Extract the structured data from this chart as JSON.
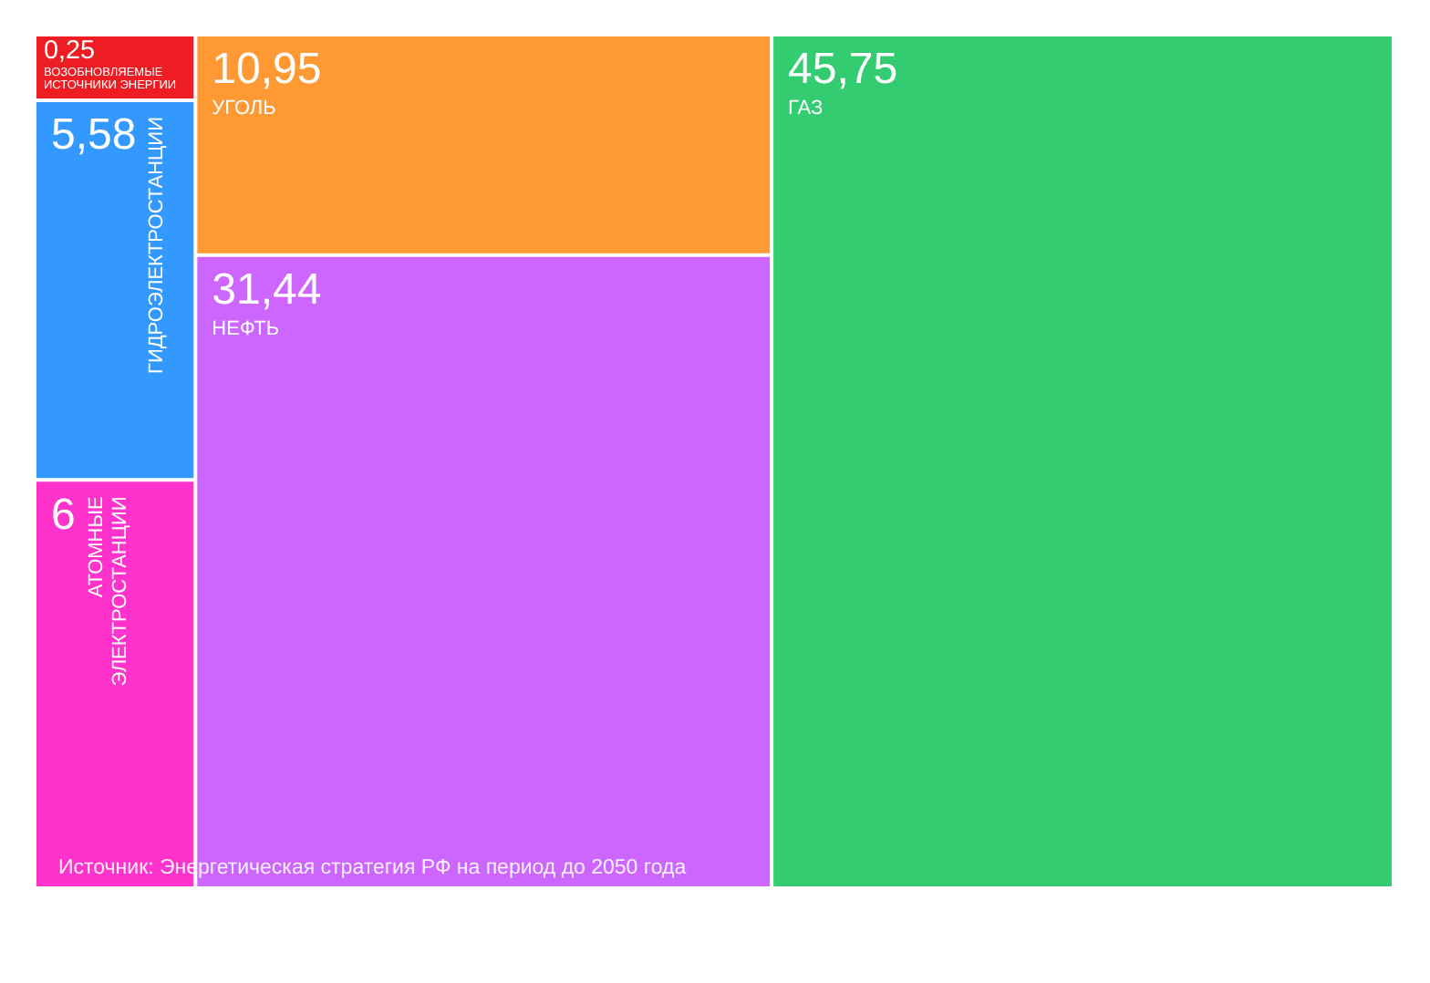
{
  "chart_data": {
    "type": "other",
    "categories": [
      "ВОЗОБНОВЛЯЕМЫЕ ИСТОЧНИКИ ЭНЕРГИИ",
      "ГИДРОЭЛЕКТРОСТАНЦИИ",
      "АТОМНЫЕ ЭЛЕКТРОСТАНЦИИ",
      "УГОЛЬ",
      "НЕФТЬ",
      "ГАЗ"
    ],
    "values": [
      0.25,
      5.58,
      6,
      10.95,
      31.44,
      45.75
    ],
    "value_labels": [
      "0,25",
      "5,58",
      "6",
      "10,95",
      "31,44",
      "45,75"
    ],
    "colors": [
      "#ee1d23",
      "#3399ff",
      "#ff33cc",
      "#ff9933",
      "#cc66ff",
      "#33cc71"
    ],
    "annotations": [
      "Источник: Энергетическая стратегия РФ на период до 2050 года"
    ]
  }
}
